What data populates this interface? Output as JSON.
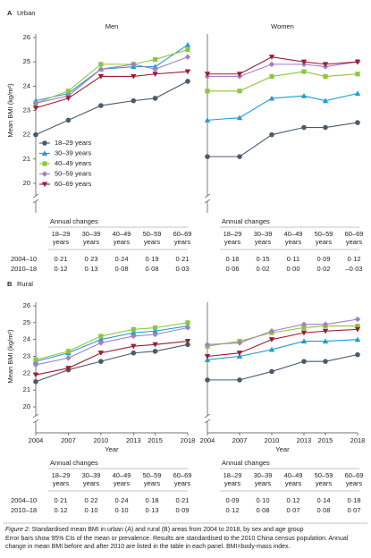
{
  "panels": [
    {
      "letter": "A",
      "title": "Urban"
    },
    {
      "letter": "B",
      "title": "Rural"
    }
  ],
  "chart_data": [
    {
      "type": "line",
      "title": "Men",
      "ylabel": "Mean BMI (kg/m²)",
      "x": [
        2004,
        2007,
        2010,
        2013,
        2015,
        2018
      ],
      "xlim": [
        2004,
        2018
      ],
      "ylim": [
        20,
        26
      ],
      "yticks": [
        20,
        21,
        22,
        23,
        24,
        25,
        26
      ],
      "legend": "lower left",
      "series": [
        {
          "name": "18–29 years",
          "color": "#4b5b6b",
          "values": [
            22.0,
            22.6,
            23.2,
            23.4,
            23.5,
            24.2
          ]
        },
        {
          "name": "30–39 years",
          "color": "#1f9bd7",
          "values": [
            23.4,
            23.7,
            24.7,
            24.8,
            24.8,
            25.7
          ]
        },
        {
          "name": "40–49 years",
          "color": "#8dc63f",
          "values": [
            23.3,
            23.8,
            24.9,
            24.9,
            25.1,
            25.5
          ]
        },
        {
          "name": "50–59 years",
          "color": "#a57fc3",
          "values": [
            23.3,
            23.6,
            24.7,
            24.9,
            24.7,
            25.2
          ]
        },
        {
          "name": "60–69 years",
          "color": "#9e1b32",
          "values": [
            23.1,
            23.5,
            24.4,
            24.4,
            24.5,
            24.6
          ]
        }
      ]
    },
    {
      "type": "line",
      "title": "Women",
      "x": [
        2004,
        2007,
        2010,
        2013,
        2015,
        2018
      ],
      "xlim": [
        2004,
        2018
      ],
      "ylim": [
        20,
        26
      ],
      "series": [
        {
          "color": "#4b5b6b",
          "values": [
            21.1,
            21.1,
            22.0,
            22.3,
            22.3,
            22.5
          ]
        },
        {
          "color": "#1f9bd7",
          "values": [
            22.6,
            22.7,
            23.5,
            23.6,
            23.4,
            23.7
          ]
        },
        {
          "color": "#8dc63f",
          "values": [
            23.8,
            23.8,
            24.4,
            24.6,
            24.4,
            24.5
          ]
        },
        {
          "color": "#a57fc3",
          "values": [
            24.4,
            24.4,
            24.9,
            24.9,
            24.8,
            25.0
          ]
        },
        {
          "color": "#9e1b32",
          "values": [
            24.5,
            24.5,
            25.2,
            25.0,
            24.9,
            25.0
          ]
        }
      ]
    },
    {
      "type": "line",
      "ylabel": "Mean BMI (kg/m²)",
      "xlabel": "Year",
      "x": [
        2004,
        2007,
        2010,
        2013,
        2015,
        2018
      ],
      "xlim": [
        2004,
        2018
      ],
      "xticks": [
        2004,
        2007,
        2010,
        2013,
        2015,
        2018
      ],
      "ylim": [
        20,
        26
      ],
      "yticks": [
        20,
        21,
        22,
        23,
        24,
        25,
        26
      ],
      "series": [
        {
          "color": "#4b5b6b",
          "values": [
            21.5,
            22.2,
            22.7,
            23.2,
            23.3,
            23.7
          ]
        },
        {
          "color": "#1f9bd7",
          "values": [
            22.7,
            23.2,
            24.0,
            24.4,
            24.5,
            24.8
          ]
        },
        {
          "color": "#8dc63f",
          "values": [
            22.8,
            23.3,
            24.2,
            24.6,
            24.7,
            25.0
          ]
        },
        {
          "color": "#a57fc3",
          "values": [
            22.5,
            22.9,
            23.8,
            24.2,
            24.3,
            24.7
          ]
        },
        {
          "color": "#9e1b32",
          "values": [
            21.9,
            22.3,
            23.2,
            23.6,
            23.7,
            23.9
          ]
        }
      ]
    },
    {
      "type": "line",
      "xlabel": "Year",
      "x": [
        2004,
        2007,
        2010,
        2013,
        2015,
        2018
      ],
      "xlim": [
        2004,
        2018
      ],
      "xticks": [
        2004,
        2007,
        2010,
        2013,
        2015,
        2018
      ],
      "ylim": [
        20,
        26
      ],
      "series": [
        {
          "color": "#4b5b6b",
          "values": [
            21.6,
            21.6,
            22.1,
            22.7,
            22.7,
            23.1
          ]
        },
        {
          "color": "#1f9bd7",
          "values": [
            22.8,
            23.0,
            23.4,
            23.9,
            23.9,
            24.0
          ]
        },
        {
          "color": "#8dc63f",
          "values": [
            23.6,
            23.9,
            24.4,
            24.7,
            24.8,
            24.8
          ]
        },
        {
          "color": "#a57fc3",
          "values": [
            23.7,
            23.8,
            24.5,
            24.9,
            24.9,
            25.2
          ]
        },
        {
          "color": "#9e1b32",
          "values": [
            23.0,
            23.2,
            24.0,
            24.4,
            24.5,
            24.6
          ]
        }
      ]
    }
  ],
  "tables": [
    {
      "title": "Annual changes",
      "columns": [
        "18–29 years",
        "30–39 years",
        "40–49 years",
        "50–59 years",
        "60–69 years"
      ],
      "rows": [
        {
          "label": "2004–10",
          "values": [
            "0·21",
            "0·23",
            "0·24",
            "0·19",
            "0·21"
          ]
        },
        {
          "label": "2010–18",
          "values": [
            "0·12",
            "0·13",
            "0·08",
            "0·08",
            "0·03"
          ]
        }
      ]
    },
    {
      "title": "Annual changes",
      "columns": [
        "18–29 years",
        "30–39 years",
        "40–49 years",
        "50–59 years",
        "60–69 years"
      ],
      "rows": [
        {
          "values": [
            "0·16",
            "0·15",
            "0·11",
            "0·09",
            "0·12"
          ]
        },
        {
          "values": [
            "0·06",
            "0·02",
            "0·00",
            "0·02",
            "–0·03"
          ]
        }
      ]
    },
    {
      "title": "Annual changes",
      "columns": [
        "18–29 years",
        "30–39 years",
        "40–49 years",
        "50–59 years",
        "60–69 years"
      ],
      "rows": [
        {
          "label": "2004–10",
          "values": [
            "0·21",
            "0·22",
            "0·24",
            "0·18",
            "0·21"
          ]
        },
        {
          "label": "2010–18",
          "values": [
            "0·12",
            "0·10",
            "0·10",
            "0·13",
            "0·09"
          ]
        }
      ]
    },
    {
      "title": "Annual changes",
      "columns": [
        "18–29 years",
        "30–39 years",
        "40–49 years",
        "50–59 years",
        "60–69 years"
      ],
      "rows": [
        {
          "values": [
            "0·09",
            "0·10",
            "0·12",
            "0·14",
            "0·18"
          ]
        },
        {
          "values": [
            "0·12",
            "0·08",
            "0·07",
            "0·08",
            "0·07"
          ]
        }
      ]
    }
  ],
  "caption": {
    "label": "Figure 2:",
    "title": "Standardised mean BMI in urban (A) and rural (B) areas from 2004 to 2018, by sex and age group",
    "text": "Error bars show 95% CIs of the mean or prevalence. Results are standardised to the 2010 China census population. Annual change in mean BMI before and after 2010 are listed in the table in each panel. BMI=body-mass index."
  }
}
